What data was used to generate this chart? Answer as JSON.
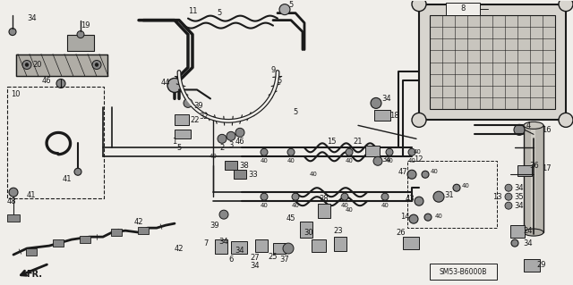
{
  "fig_width": 6.4,
  "fig_height": 3.19,
  "dpi": 100,
  "bg_color": "#f0eeea",
  "line_color": "#1a1a1a",
  "diagram_bounds": [
    0.0,
    0.0,
    1.0,
    1.0
  ]
}
